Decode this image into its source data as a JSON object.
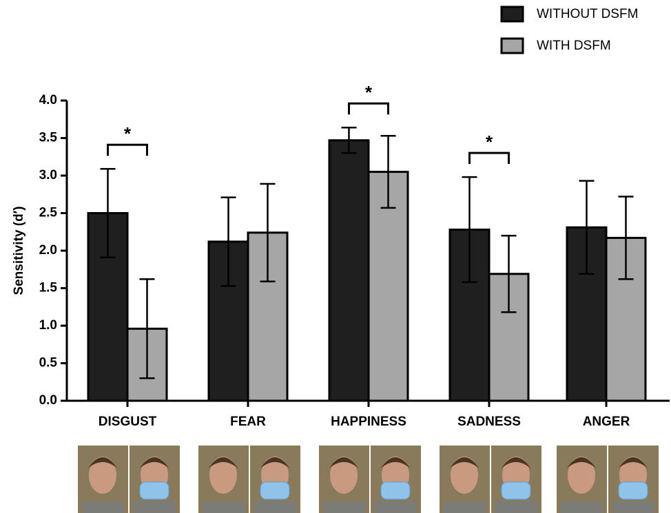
{
  "chart_data": {
    "type": "bar",
    "y_label": "Sensitivity (d′)",
    "categories": [
      "DISGUST",
      "FEAR",
      "HAPPINESS",
      "SADNESS",
      "ANGER"
    ],
    "series": [
      {
        "name": "WITHOUT DSFM",
        "color": "#1f1f1f",
        "values": [
          2.5,
          2.12,
          3.47,
          2.28,
          2.31
        ],
        "errors": [
          0.59,
          0.59,
          0.17,
          0.7,
          0.62
        ]
      },
      {
        "name": "WITH DSFM",
        "color": "#a6a6a6",
        "values": [
          0.96,
          2.24,
          3.05,
          1.69,
          2.17
        ],
        "errors": [
          0.66,
          0.65,
          0.48,
          0.51,
          0.55
        ]
      }
    ],
    "significant": [
      true,
      false,
      true,
      true,
      false
    ],
    "significance_label": "*",
    "ylim": [
      0,
      4
    ],
    "yticks": [
      {
        "value": 0,
        "label": "0.0"
      },
      {
        "value": 0.5,
        "label": "0.5"
      },
      {
        "value": 1,
        "label": "1.0"
      },
      {
        "value": 1.5,
        "label": "1.5"
      },
      {
        "value": 2,
        "label": "2.0"
      },
      {
        "value": 2.5,
        "label": "2.5"
      },
      {
        "value": 3,
        "label": "3.0"
      },
      {
        "value": 3.5,
        "label": "3.5"
      },
      {
        "value": 4,
        "label": "4.0"
      }
    ],
    "legend_position": "top-right"
  }
}
